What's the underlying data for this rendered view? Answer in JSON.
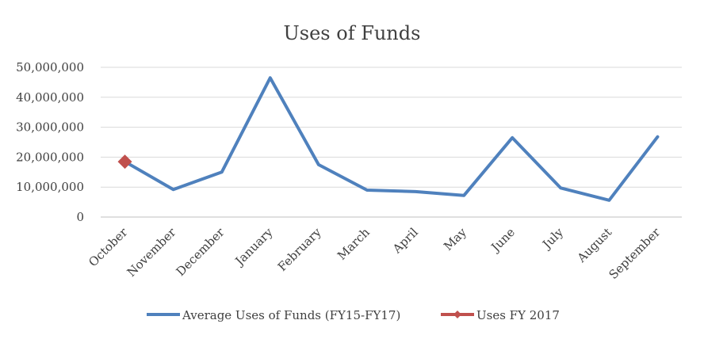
{
  "chart_data": {
    "type": "line",
    "title": "Uses of Funds",
    "categories": [
      "October",
      "November",
      "December",
      "January",
      "February",
      "March",
      "April",
      "May",
      "June",
      "July",
      "August",
      "September"
    ],
    "y_tick_labels": [
      "0",
      "10,000,000",
      "20,000,000",
      "30,000,000",
      "40,000,000",
      "50,000,000"
    ],
    "ylim": [
      0,
      50000000
    ],
    "grid": true,
    "legend_position": "bottom",
    "series": [
      {
        "name": "Average Uses of Funds (FY15-FY17)",
        "color": "#4f81bd",
        "marker": "none",
        "values": [
          18500000,
          9200000,
          15000000,
          46500000,
          17500000,
          9000000,
          8500000,
          7200000,
          26500000,
          9700000,
          5600000,
          26800000
        ]
      },
      {
        "name": "Uses FY 2017",
        "color": "#c0504d",
        "marker": "diamond",
        "values": [
          18500000,
          null,
          null,
          null,
          null,
          null,
          null,
          null,
          null,
          null,
          null,
          null
        ]
      }
    ]
  }
}
